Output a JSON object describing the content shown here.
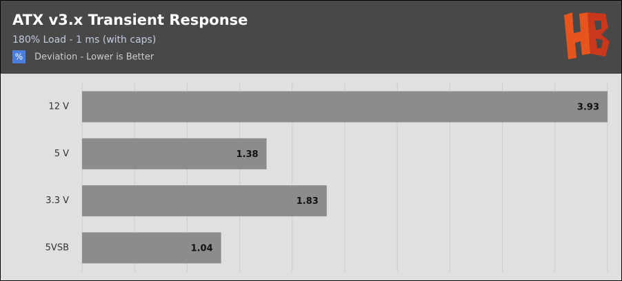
{
  "chart_data": {
    "type": "bar",
    "orientation": "horizontal",
    "title": "ATX v3.x Transient Response",
    "subtitle": "180% Load - 1 ms (with caps)",
    "legend_icon": "%",
    "categories": [
      "12 V",
      "5 V",
      "3.3 V",
      "5VSB"
    ],
    "series": [
      {
        "name": "Deviation - Lower is Better",
        "color": "#8c8c8c",
        "values": [
          3.93,
          1.38,
          1.83,
          1.04
        ]
      }
    ],
    "xlim": [
      0,
      3.93
    ],
    "grid": true
  }
}
